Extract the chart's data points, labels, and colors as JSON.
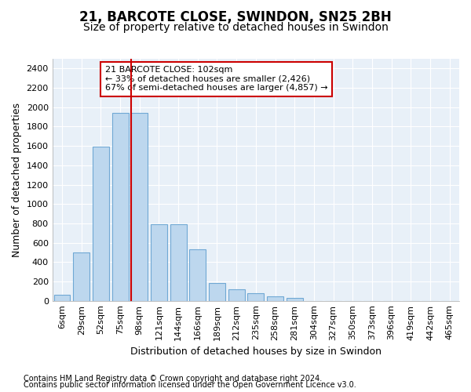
{
  "title": "21, BARCOTE CLOSE, SWINDON, SN25 2BH",
  "subtitle": "Size of property relative to detached houses in Swindon",
  "xlabel": "Distribution of detached houses by size in Swindon",
  "ylabel": "Number of detached properties",
  "footnote1": "Contains HM Land Registry data © Crown copyright and database right 2024.",
  "footnote2": "Contains public sector information licensed under the Open Government Licence v3.0.",
  "bar_labels": [
    "6sqm",
    "29sqm",
    "52sqm",
    "75sqm",
    "98sqm",
    "121sqm",
    "144sqm",
    "166sqm",
    "189sqm",
    "212sqm",
    "235sqm",
    "258sqm",
    "281sqm",
    "304sqm",
    "327sqm",
    "350sqm",
    "373sqm",
    "396sqm",
    "419sqm",
    "442sqm",
    "465sqm"
  ],
  "bar_values": [
    60,
    500,
    1590,
    1940,
    1940,
    790,
    790,
    530,
    180,
    120,
    80,
    50,
    30,
    0,
    0,
    0,
    0,
    0,
    0,
    0,
    0
  ],
  "bar_color": "#BDD7EE",
  "bar_edge_color": "#70A8D4",
  "bar_edge_width": 0.8,
  "vline_color": "#CC0000",
  "annotation_text": "21 BARCOTE CLOSE: 102sqm\n← 33% of detached houses are smaller (2,426)\n67% of semi-detached houses are larger (4,857) →",
  "annotation_box_color": "#ffffff",
  "annotation_box_edge": "#CC0000",
  "ylim_max": 2500,
  "ytick_max": 2400,
  "ytick_step": 200,
  "background_color": "#E8F0F8",
  "grid_color": "#ffffff",
  "title_fontsize": 12,
  "subtitle_fontsize": 10,
  "axis_label_fontsize": 9,
  "tick_fontsize": 8,
  "annotation_fontsize": 8,
  "footnote_fontsize": 7
}
